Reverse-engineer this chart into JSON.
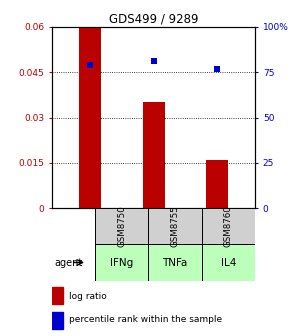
{
  "title": "GDS499 / 9289",
  "samples": [
    "GSM8750",
    "GSM8755",
    "GSM8760"
  ],
  "agents": [
    "IFNg",
    "TNFa",
    "IL4"
  ],
  "bar_values": [
    0.06,
    0.035,
    0.016
  ],
  "percentile_values": [
    79,
    81,
    77
  ],
  "bar_color": "#bb0000",
  "percentile_color": "#0000cc",
  "ylim_left": [
    0,
    0.06
  ],
  "ylim_right": [
    0,
    100
  ],
  "yticks_left": [
    0,
    0.015,
    0.03,
    0.045,
    0.06
  ],
  "ytick_labels_left": [
    "0",
    "0.015",
    "0.03",
    "0.045",
    "0.06"
  ],
  "yticks_right": [
    0,
    25,
    50,
    75,
    100
  ],
  "ytick_labels_right": [
    "0",
    "25",
    "50",
    "75",
    "100%"
  ],
  "grid_values": [
    0.015,
    0.03,
    0.045
  ],
  "sample_box_color": "#d0d0d0",
  "agent_box_color": "#bbffbb",
  "agent_label": "agent",
  "legend_bar_label": "log ratio",
  "legend_pct_label": "percentile rank within the sample",
  "bar_width": 0.35,
  "fig_width": 2.9,
  "fig_height": 3.36
}
